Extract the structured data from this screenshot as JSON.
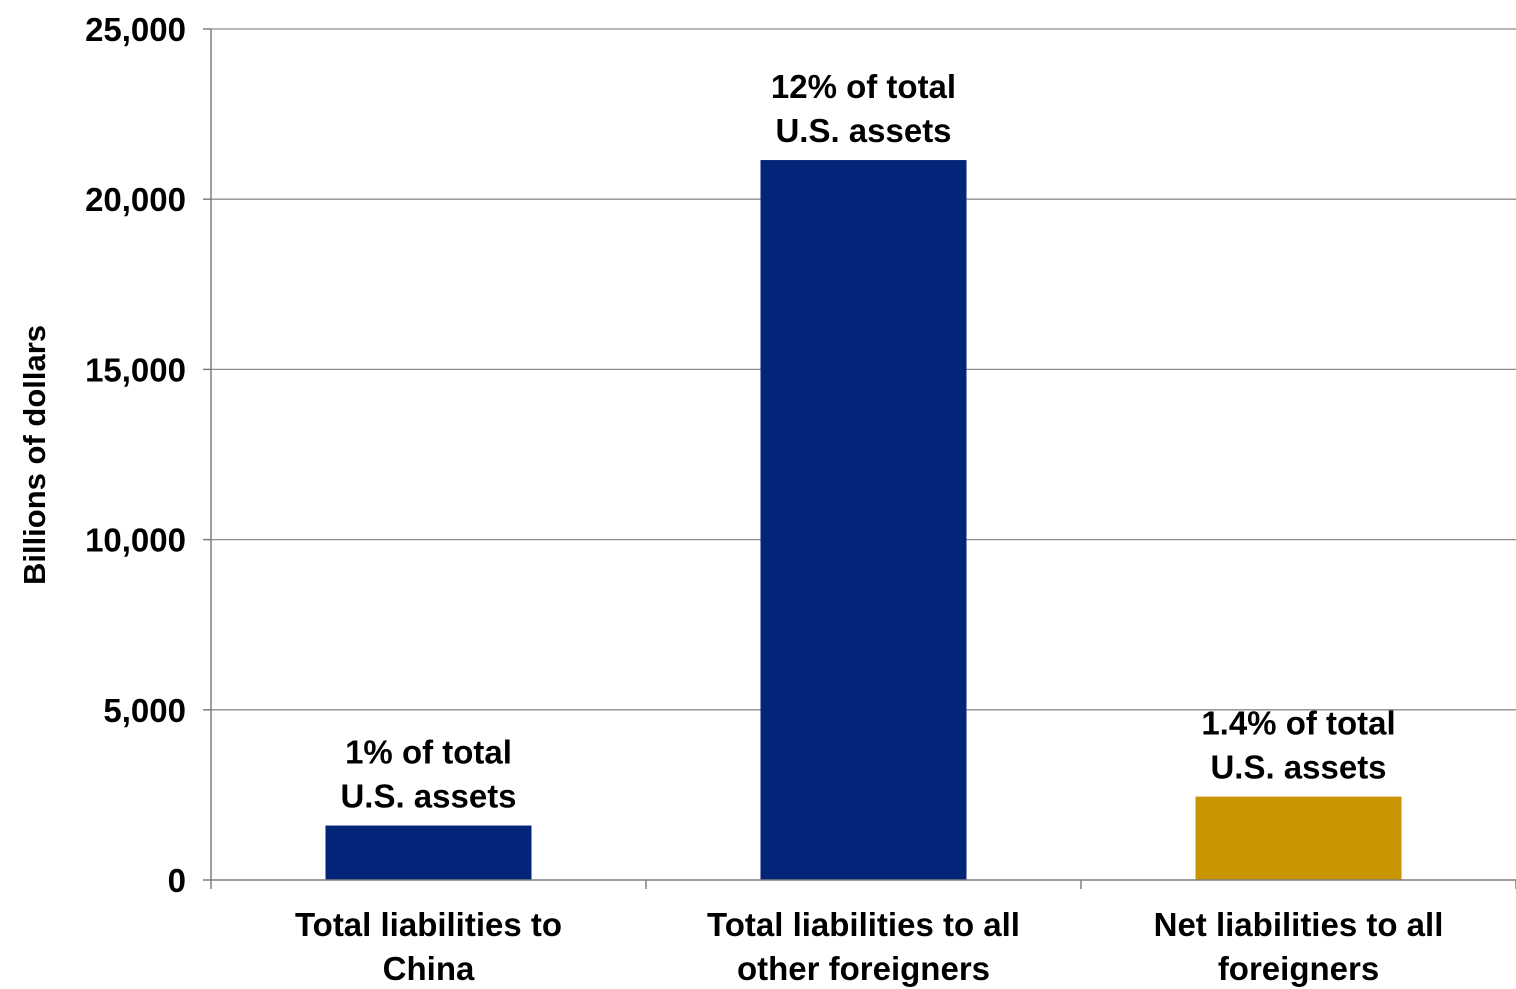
{
  "chart_data": {
    "type": "bar",
    "title": "",
    "xlabel": "",
    "ylabel": "Billions of dollars",
    "ylim": [
      0,
      25000
    ],
    "yticks": [
      0,
      5000,
      10000,
      15000,
      20000,
      25000
    ],
    "ytick_labels": [
      "0",
      "5,000",
      "10,000",
      "15,000",
      "20,000",
      "25,000"
    ],
    "grid": true,
    "categories": [
      [
        "Total liabilities to",
        "China"
      ],
      [
        "Total liabilities to all",
        "other foreigners"
      ],
      [
        "Net liabilities to all",
        "foreigners"
      ]
    ],
    "values": [
      1600,
      21150,
      2450
    ],
    "colors": [
      "#022579",
      "#022579",
      "#C99402"
    ],
    "data_labels": [
      [
        "1% of total",
        "U.S. assets"
      ],
      [
        "12% of total",
        "U.S. assets"
      ],
      [
        "1.4% of total",
        "U.S. assets"
      ]
    ]
  }
}
